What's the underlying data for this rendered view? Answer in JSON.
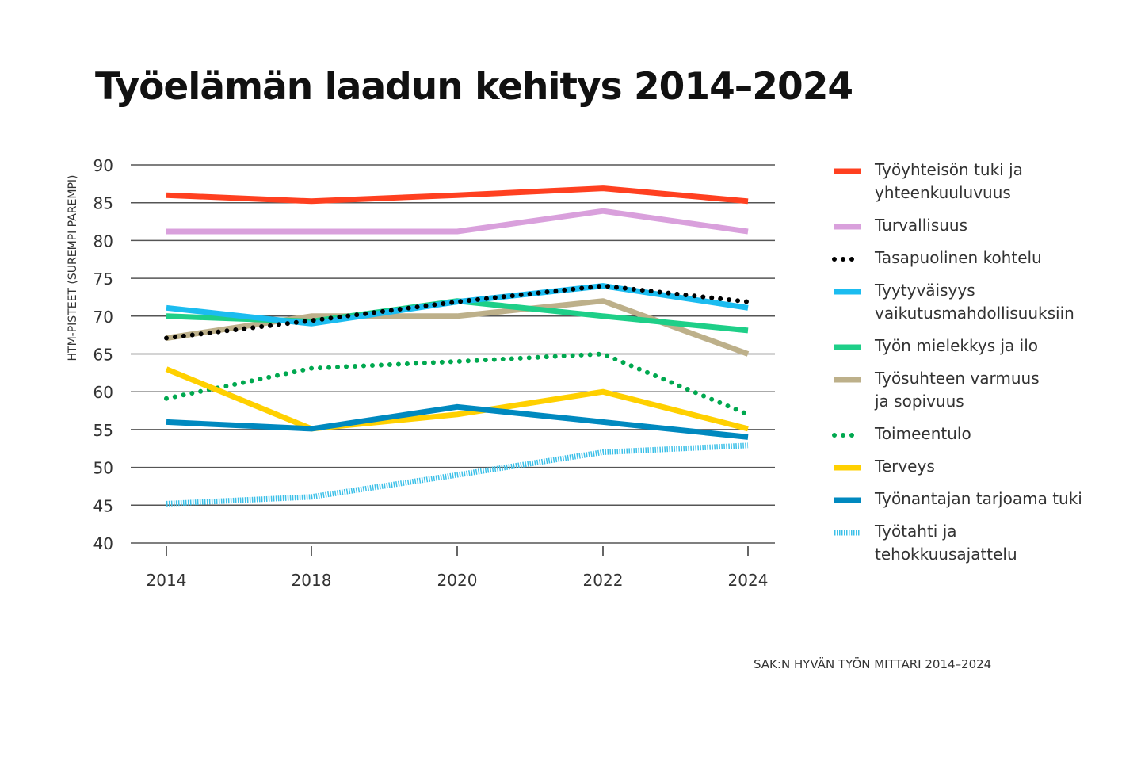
{
  "title": "Työelämän laadun kehitys 2014–2024",
  "source": "SAK:N HYVÄN TYÖN MITTARI 2014–2024",
  "chart_data": {
    "type": "line",
    "title": "Työelämän laadun kehitys 2014–2024",
    "xlabel": "",
    "ylabel": "HTM-PISTEET (SUREMPI PAREMPI)",
    "categories": [
      "2014",
      "2018",
      "2020",
      "2022",
      "2024"
    ],
    "ylim": [
      40,
      90
    ],
    "yticks": [
      40,
      45,
      50,
      55,
      60,
      65,
      70,
      75,
      80,
      85,
      90
    ],
    "grid": true,
    "legend": "right",
    "series": [
      {
        "name": "Työyhteisön tuki ja yhteenkuuluvuus",
        "legend_lines": [
          "Työyhteisön tuki ja",
          "yhteenkuuluvuus"
        ],
        "color": "#ff4020",
        "style": "solid",
        "values": [
          86.0,
          85.2,
          86.0,
          86.9,
          85.2
        ]
      },
      {
        "name": "Turvallisuus",
        "legend_lines": [
          "Turvallisuus"
        ],
        "color": "#d9a0dc",
        "style": "solid",
        "values": [
          81.2,
          81.2,
          81.2,
          83.9,
          81.2
        ]
      },
      {
        "name": "Työsuhteen varmuus ja sopivuus",
        "legend_lines": [
          "Työsuhteen varmuus",
          "ja sopivuus"
        ],
        "color": "#bdb08a",
        "style": "solid",
        "values": [
          67.1,
          70.0,
          70.0,
          72.0,
          65.0
        ]
      },
      {
        "name": "Työn mielekkys ja ilo",
        "legend_lines": [
          "Työn mielekkys ja ilo"
        ],
        "color": "#1ecf88",
        "style": "solid",
        "values": [
          70.0,
          69.3,
          72.0,
          70.0,
          68.1
        ]
      },
      {
        "name": "Tyytyväisyys vaikutusmahdollisuuksiin",
        "legend_lines": [
          "Tyytyväisyys",
          "vaikutusmahdollisuuksiin"
        ],
        "color": "#1bbcf0",
        "style": "solid",
        "values": [
          71.1,
          69.0,
          71.9,
          74.0,
          71.1
        ]
      },
      {
        "name": "Tasapuolinen kohtelu",
        "legend_lines": [
          "Tasapuolinen kohtelu"
        ],
        "color": "#000000",
        "style": "dotted",
        "values": [
          67.1,
          69.4,
          71.9,
          74.0,
          71.9
        ]
      },
      {
        "name": "Toimeentulo",
        "legend_lines": [
          "Toimeentulo"
        ],
        "color": "#00a84f",
        "style": "dotted",
        "values": [
          59.1,
          63.1,
          64.0,
          65.0,
          57.0
        ]
      },
      {
        "name": "Terveys",
        "legend_lines": [
          "Terveys"
        ],
        "color": "#ffd000",
        "style": "solid",
        "values": [
          63.0,
          55.1,
          57.0,
          60.0,
          55.1
        ]
      },
      {
        "name": "Työnantajan tarjoama tuki",
        "legend_lines": [
          "Työnantajan tarjoama tuki"
        ],
        "color": "#0089bf",
        "style": "solid",
        "values": [
          56.0,
          55.1,
          58.0,
          56.0,
          54.0
        ]
      },
      {
        "name": "Työtahti ja tehokkuusajattelu",
        "legend_lines": [
          "Työtahti ja",
          "tehokkuusajattelu"
        ],
        "color": "#3cc0e8",
        "style": "hatched",
        "values": [
          45.2,
          46.1,
          49.0,
          52.0,
          52.9
        ]
      }
    ],
    "legend_order": [
      0,
      1,
      5,
      4,
      3,
      2,
      6,
      7,
      8,
      9
    ]
  }
}
